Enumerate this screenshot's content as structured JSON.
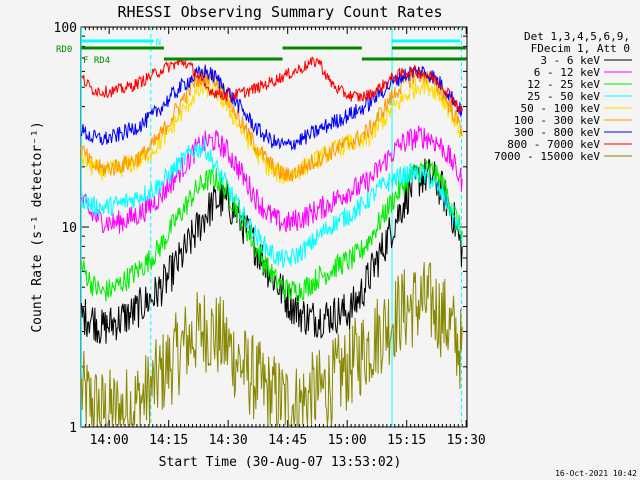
{
  "chart_data": {
    "type": "line",
    "title": "RHESSI Observing Summary Count Rates",
    "xlabel": "Start Time (30-Aug-07 13:53:02)",
    "ylabel": "Count Rate (s⁻¹ detector⁻¹)",
    "y_scale": "log",
    "ylim": [
      1,
      100
    ],
    "xlim_minutes": [
      -0.1,
      97.2
    ],
    "x_tick_values": [
      7,
      22,
      37,
      52,
      67,
      82,
      97
    ],
    "x_tick_labels": [
      "14:00",
      "14:15",
      "14:30",
      "14:45",
      "15:00",
      "15:15",
      "15:30"
    ],
    "y_tick_values": [
      1,
      10,
      100
    ],
    "y_tick_labels": [
      "1",
      "10",
      "100"
    ],
    "timestamp": "16-Oct-2021 10:42",
    "legend_header": [
      "Det 1,3,4,5,6,9,",
      "FDecim 1, Att 0"
    ],
    "legend_position": "right",
    "series": [
      {
        "name": "3 - 6 keV",
        "color": "#000000",
        "values": [
          3.6,
          3.5,
          3.1,
          3.3,
          3.5,
          3.7,
          4.1,
          4.5,
          5.2,
          6.2,
          7.5,
          9.3,
          11.5,
          13.5,
          13.5,
          11.8,
          9.6,
          7.8,
          6.3,
          5.2,
          4.3,
          3.8,
          3.5,
          3.5,
          3.6,
          3.7,
          3.8,
          4.5,
          5.8,
          7.4,
          9.6,
          12.5,
          15.8,
          18.0,
          17.8,
          15.2,
          11.5,
          7.2
        ]
      },
      {
        "name": "6 - 12 keV",
        "color": "#ff00ff",
        "values": [
          13.5,
          11.5,
          10.8,
          10.4,
          10.7,
          11.2,
          12.0,
          13.2,
          15.0,
          17.5,
          20.5,
          24.0,
          26.5,
          27.0,
          24.5,
          20.5,
          16.8,
          13.8,
          11.8,
          10.7,
          10.4,
          10.9,
          11.5,
          12.2,
          13.0,
          14.2,
          15.2,
          15.8,
          17.2,
          20.0,
          23.0,
          26.0,
          27.5,
          28.5,
          27.5,
          25.0,
          21.0,
          16.5
        ]
      },
      {
        "name": "12 - 25 keV",
        "color": "#00ee00",
        "values": [
          6.4,
          5.2,
          4.7,
          4.9,
          5.3,
          5.8,
          6.4,
          7.2,
          8.5,
          10.5,
          12.5,
          15.0,
          17.0,
          17.5,
          15.5,
          12.5,
          9.8,
          7.7,
          6.3,
          5.3,
          4.8,
          4.8,
          5.1,
          5.6,
          6.0,
          6.5,
          6.8,
          7.4,
          8.8,
          10.8,
          13.2,
          15.6,
          18.0,
          19.5,
          19.0,
          16.5,
          12.5,
          8.8
        ]
      },
      {
        "name": "25 - 50 keV",
        "color": "#00ffff",
        "values": [
          14.0,
          12.8,
          12.5,
          12.8,
          13.2,
          13.8,
          14.6,
          15.5,
          17.0,
          19.5,
          22.0,
          24.5,
          25.0,
          20.0,
          16.5,
          13.2,
          10.8,
          9.0,
          7.8,
          7.0,
          6.8,
          7.3,
          8.0,
          9.0,
          10.0,
          10.8,
          11.5,
          12.5,
          14.0,
          15.8,
          17.0,
          18.0,
          18.6,
          18.2,
          17.0,
          14.5,
          11.5,
          8.8
        ]
      },
      {
        "name": "50 - 100 keV",
        "color": "#ffdd00",
        "values": [
          22.5,
          20.0,
          19.0,
          19.2,
          19.8,
          20.8,
          22.0,
          24.5,
          28.0,
          33.0,
          39.0,
          46.0,
          50.0,
          48.0,
          41.0,
          34.0,
          28.0,
          23.5,
          20.0,
          18.5,
          18.0,
          19.0,
          20.5,
          22.0,
          23.5,
          25.0,
          26.5,
          26.0,
          28.0,
          33.0,
          38.0,
          43.0,
          48.0,
          52.0,
          50.0,
          44.0,
          36.0,
          28.5
        ]
      },
      {
        "name": "100 - 300 keV",
        "color": "#ff9900",
        "values": [
          24.5,
          20.5,
          19.5,
          19.8,
          20.5,
          21.5,
          23.0,
          26.0,
          30.5,
          37.0,
          45.0,
          53.0,
          58.0,
          55.0,
          46.0,
          37.0,
          30.0,
          25.0,
          21.5,
          19.0,
          18.0,
          19.0,
          20.5,
          22.0,
          23.5,
          25.0,
          26.5,
          28.0,
          31.0,
          37.0,
          44.0,
          51.0,
          56.0,
          58.0,
          55.0,
          47.0,
          38.0,
          30.0
        ]
      },
      {
        "name": "300 - 800 keV",
        "color": "#0000ff",
        "values": [
          30.5,
          28.0,
          27.5,
          28.0,
          29.5,
          31.0,
          33.0,
          36.5,
          41.0,
          46.5,
          52.0,
          57.0,
          60.0,
          56.0,
          49.0,
          42.0,
          36.0,
          31.0,
          28.0,
          26.0,
          25.5,
          27.0,
          28.5,
          30.5,
          32.5,
          34.5,
          36.5,
          38.5,
          42.0,
          47.0,
          52.0,
          56.5,
          59.0,
          60.0,
          57.0,
          51.0,
          44.0,
          36.5
        ]
      },
      {
        "name": "800 - 7000 keV",
        "color": "#ff0000",
        "values": [
          56.0,
          49.0,
          47.5,
          47.8,
          49.0,
          51.0,
          54.0,
          58.0,
          62.0,
          65.0,
          67.0,
          60.0,
          50.0,
          47.0,
          45.5,
          46.0,
          47.5,
          49.5,
          52.0,
          55.0,
          58.0,
          61.0,
          65.0,
          68.0,
          54.0,
          48.0,
          45.5,
          44.5,
          46.0,
          50.0,
          55.0,
          58.5,
          60.0,
          59.0,
          56.0,
          51.0,
          44.0,
          37.0
        ]
      },
      {
        "name": "7000 - 15000 keV",
        "color": "#888800",
        "values": [
          1.5,
          1.3,
          1.2,
          1.2,
          1.2,
          1.3,
          1.4,
          1.6,
          1.9,
          2.2,
          2.6,
          2.9,
          3.1,
          2.9,
          2.6,
          2.2,
          1.9,
          1.7,
          1.5,
          1.4,
          1.3,
          1.3,
          1.4,
          1.5,
          1.6,
          1.8,
          2.0,
          2.3,
          2.6,
          3.0,
          3.4,
          3.8,
          4.0,
          4.2,
          4.1,
          3.6,
          3.0,
          2.3
        ]
      }
    ],
    "time_minutes": [
      0,
      2.6,
      5.2,
      7.8,
      10.4,
      13.0,
      15.6,
      18.2,
      20.8,
      23.4,
      26.0,
      28.6,
      31.2,
      33.8,
      36.4,
      39.0,
      41.6,
      44.2,
      46.8,
      49.4,
      52.0,
      54.6,
      57.2,
      59.8,
      62.4,
      65.0,
      67.6,
      70.2,
      72.8,
      75.4,
      78.0,
      80.6,
      83.2,
      85.8,
      88.4,
      91.0,
      93.6,
      96.2
    ],
    "vertical_lines": [
      {
        "t": 0.0,
        "style": "solid",
        "color": "#00ffff"
      },
      {
        "t": 17.5,
        "style": "dashed",
        "color": "#00ffff"
      },
      {
        "t": 78.3,
        "style": "solid",
        "color": "#00ffff"
      },
      {
        "t": 95.8,
        "style": "dashed",
        "color": "#00ffff"
      }
    ],
    "flag_bars": [
      {
        "label": "RD0",
        "color": "#008800",
        "segments": [
          [
            0,
            20.8
          ],
          [
            50.7,
            70.7
          ],
          [
            78.3,
            97.0
          ]
        ]
      },
      {
        "label": "RD4",
        "color": "#008800",
        "segments": [
          [
            20.8,
            50.7
          ],
          [
            70.7,
            97.0
          ]
        ]
      },
      {
        "label": "N",
        "color": "#00ffff",
        "segments": [
          [
            0,
            18.2
          ],
          [
            78.3,
            95.5
          ]
        ]
      }
    ]
  }
}
